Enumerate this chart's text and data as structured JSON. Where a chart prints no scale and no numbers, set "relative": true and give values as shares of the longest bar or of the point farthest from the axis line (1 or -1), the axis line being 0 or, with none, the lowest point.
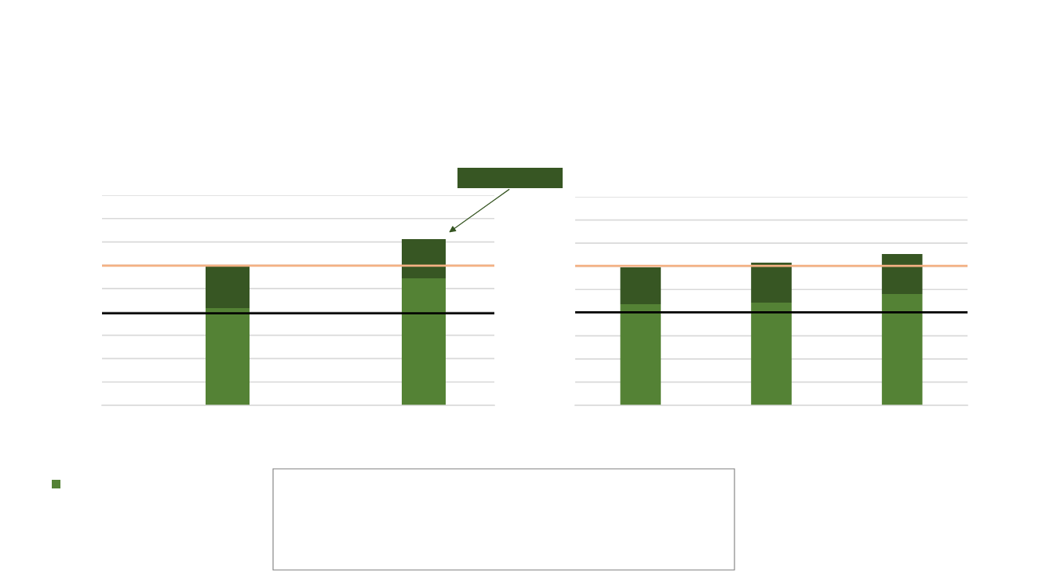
{
  "chart_data": [
    {
      "type": "bar",
      "stacked": true,
      "relative": true,
      "grid": "y",
      "categories": [
        null,
        null
      ],
      "series": [
        {
          "color": "#548235",
          "values": [
            0.585,
            0.764
          ]
        },
        {
          "color": "#375623",
          "values": [
            0.25,
            0.236
          ]
        }
      ],
      "ref_lines": [
        {
          "axis": "y",
          "value": 0.84,
          "color": "#f4b183"
        },
        {
          "axis": "y",
          "value": 0.554,
          "color": "#000000"
        }
      ]
    },
    {
      "type": "bar",
      "stacked": true,
      "relative": true,
      "grid": "y",
      "categories": [
        null,
        null,
        null
      ],
      "series": [
        {
          "color": "#548235",
          "values": [
            0.668,
            0.679,
            0.736
          ]
        },
        {
          "color": "#375623",
          "values": [
            0.244,
            0.264,
            0.264
          ]
        }
      ],
      "ref_lines": [
        {
          "axis": "y",
          "value": 0.922,
          "color": "#f4b183"
        },
        {
          "axis": "y",
          "value": 0.615,
          "color": "#000000"
        }
      ]
    }
  ]
}
